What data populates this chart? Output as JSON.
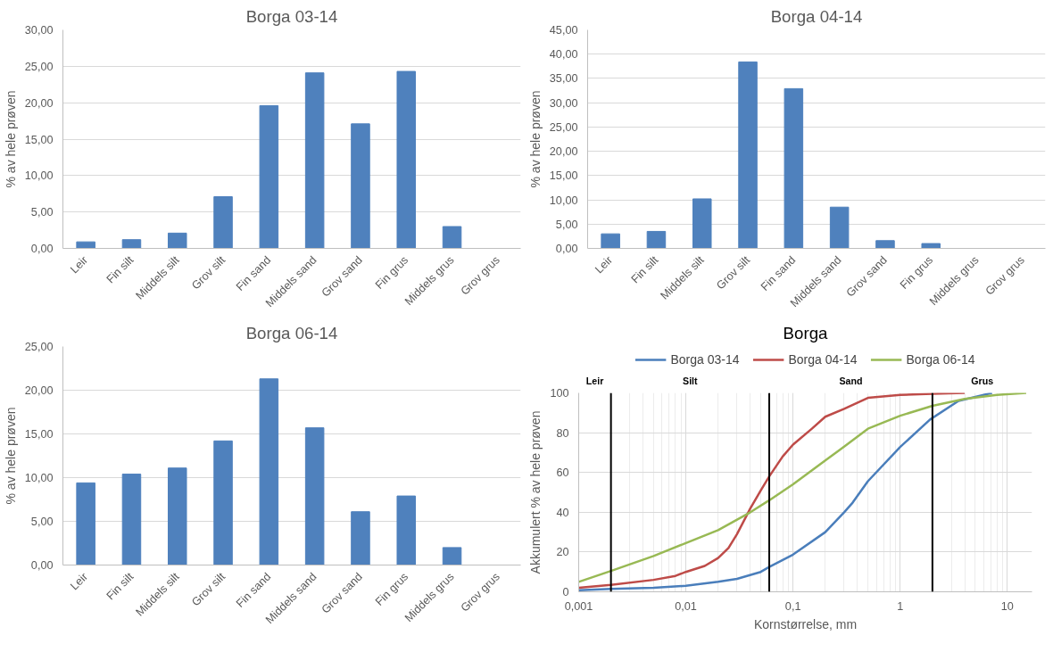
{
  "chart_data": [
    {
      "type": "bar",
      "title": "Borga 03-14",
      "ylabel": "% av hele prøven",
      "categories": [
        "Leir",
        "Fin silt",
        "Middels silt",
        "Grov silt",
        "Fin sand",
        "Middels sand",
        "Grov sand",
        "Fin grus",
        "Middels grus",
        "Grov grus"
      ],
      "values": [
        0.9,
        1.2,
        2.1,
        7.1,
        19.6,
        24.1,
        17.1,
        24.3,
        3.0,
        0
      ],
      "color": "#4f81bd",
      "ylim": [
        0,
        30
      ],
      "yticks": [
        {
          "value": 0,
          "label": "0,00"
        },
        {
          "value": 5,
          "label": "5,00"
        },
        {
          "value": 10,
          "label": "10,00"
        },
        {
          "value": 15,
          "label": "15,00"
        },
        {
          "value": 20,
          "label": "20,00"
        },
        {
          "value": 25,
          "label": "25,00"
        },
        {
          "value": 30,
          "label": "30,00"
        }
      ],
      "grid": "y"
    },
    {
      "type": "bar",
      "title": "Borga 04-14",
      "ylabel": "% av hele prøven",
      "categories": [
        "Leir",
        "Fin silt",
        "Middels silt",
        "Grov silt",
        "Fin sand",
        "Middels sand",
        "Grov sand",
        "Fin grus",
        "Middels grus",
        "Grov grus"
      ],
      "values": [
        3.0,
        3.5,
        10.2,
        38.4,
        32.9,
        8.5,
        1.6,
        1.0,
        0,
        0
      ],
      "color": "#4f81bd",
      "ylim": [
        0,
        45
      ],
      "yticks": [
        {
          "value": 0,
          "label": "0,00"
        },
        {
          "value": 5,
          "label": "5,00"
        },
        {
          "value": 10,
          "label": "10,00"
        },
        {
          "value": 15,
          "label": "15,00"
        },
        {
          "value": 20,
          "label": "20,00"
        },
        {
          "value": 25,
          "label": "25,00"
        },
        {
          "value": 30,
          "label": "30,00"
        },
        {
          "value": 35,
          "label": "35,00"
        },
        {
          "value": 40,
          "label": "40,00"
        },
        {
          "value": 45,
          "label": "45,00"
        }
      ],
      "grid": "y"
    },
    {
      "type": "bar",
      "title": "Borga 06-14",
      "ylabel": "% av hele prøven",
      "categories": [
        "Leir",
        "Fin silt",
        "Middels silt",
        "Grov silt",
        "Fin sand",
        "Middels sand",
        "Grov sand",
        "Fin grus",
        "Middels grus",
        "Grov grus"
      ],
      "values": [
        9.4,
        10.4,
        11.1,
        14.2,
        21.3,
        15.7,
        6.1,
        7.9,
        2.0,
        0
      ],
      "color": "#4f81bd",
      "ylim": [
        0,
        25
      ],
      "yticks": [
        {
          "value": 0,
          "label": "0,00"
        },
        {
          "value": 5,
          "label": "5,00"
        },
        {
          "value": 10,
          "label": "10,00"
        },
        {
          "value": 15,
          "label": "15,00"
        },
        {
          "value": 20,
          "label": "20,00"
        },
        {
          "value": 25,
          "label": "25,00"
        }
      ],
      "grid": "y"
    },
    {
      "type": "line",
      "title": "Borga",
      "xlabel": "Kornstørrelse, mm",
      "ylabel": "Akkumulert % av hele prøven",
      "log": "x",
      "grid": true,
      "legend": "top",
      "xlim": [
        0.001,
        17
      ],
      "ylim": [
        0,
        100
      ],
      "xticks": [
        {
          "value": 0.001,
          "label": "0,001"
        },
        {
          "value": 0.01,
          "label": "0,01"
        },
        {
          "value": 0.1,
          "label": "0,1"
        },
        1,
        10
      ],
      "yticks": [
        0,
        20,
        40,
        60,
        80,
        100
      ],
      "series": [
        {
          "name": "Borga 03-14",
          "color": "#4a7ebb",
          "x": [
            0.001,
            0.002,
            0.005,
            0.01,
            0.02,
            0.03,
            0.05,
            0.06,
            0.1,
            0.2,
            0.3,
            0.36,
            0.5,
            1,
            1.9,
            3.5,
            7.2
          ],
          "values": [
            0.8,
            1.5,
            2,
            3,
            5,
            6.5,
            10,
            12.5,
            18.7,
            30,
            40,
            44.8,
            55.6,
            72.8,
            86.6,
            96,
            100
          ]
        },
        {
          "name": "Borga 04-14",
          "color": "#be4b48",
          "x": [
            0.001,
            0.002,
            0.005,
            0.008,
            0.01,
            0.015,
            0.02,
            0.025,
            0.03,
            0.04,
            0.05,
            0.06,
            0.08,
            0.1,
            0.15,
            0.2,
            0.3,
            0.5,
            1,
            2,
            4
          ],
          "values": [
            2,
            3.5,
            6,
            8,
            10,
            13,
            17,
            22,
            29,
            42,
            51,
            58,
            68,
            74,
            82,
            88,
            92,
            97.5,
            99,
            99.6,
            100
          ]
        },
        {
          "name": "Borga 06-14",
          "color": "#98b954",
          "x": [
            0.001,
            0.002,
            0.005,
            0.01,
            0.02,
            0.04,
            0.06,
            0.1,
            0.2,
            0.3,
            0.5,
            1,
            2,
            4,
            8,
            15
          ],
          "values": [
            5,
            10.5,
            18,
            24.5,
            31,
            40,
            46,
            54,
            66,
            73,
            82,
            88.5,
            93.5,
            97,
            99,
            100
          ]
        }
      ],
      "ref_lines": [
        {
          "axis": "x",
          "value": 0.002,
          "color": "#000000"
        },
        {
          "axis": "x",
          "value": 0.06,
          "color": "#000000"
        },
        {
          "axis": "x",
          "value": 2,
          "color": "#000000"
        }
      ],
      "annotations": [
        "Leir",
        "Silt",
        "Sand",
        "Grus"
      ]
    }
  ]
}
